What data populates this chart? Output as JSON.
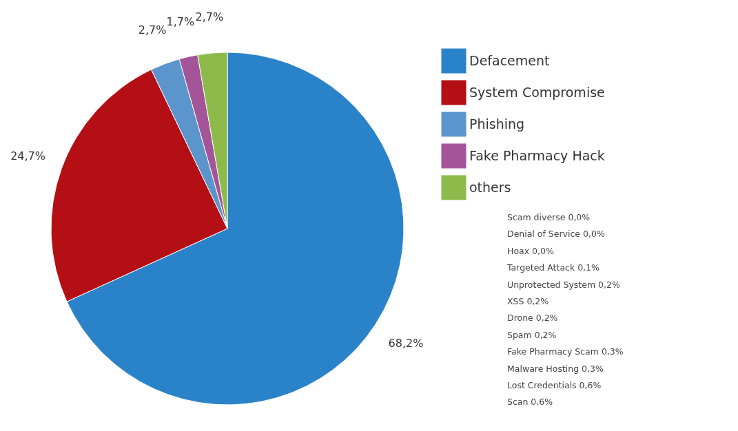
{
  "chart_data": {
    "type": "pie",
    "categories": [
      "Defacement",
      "System Compromise",
      "Phishing",
      "Fake Pharmacy Hack",
      "others"
    ],
    "values": [
      68.2,
      24.7,
      2.7,
      1.7,
      2.7
    ],
    "colors": [
      "#2a83c9",
      "#b30f15",
      "#5b95cc",
      "#a4559a",
      "#8dba4a"
    ],
    "value_labels": [
      "68,2%",
      "24,7%",
      "2,7%",
      "1,7%",
      "2,7%"
    ],
    "legend": "right",
    "annotations": [
      "Scam diverse 0,0%",
      "Denial of Service 0,0%",
      "Hoax 0,0%",
      "Targeted Attack 0,1%",
      "Unprotected System 0,2%",
      "XSS 0,2%",
      "Drone 0,2%",
      "Spam 0,2%",
      "Fake Pharmacy Scam 0,3%",
      "Malware Hosting 0,3%",
      "Lost Credentials 0,6%",
      "Scan 0,6%"
    ]
  }
}
